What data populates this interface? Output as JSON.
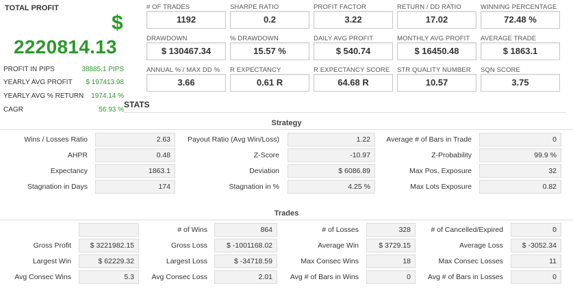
{
  "total_profit": {
    "title": "TOTAL PROFIT",
    "currency_symbol": "$",
    "value": "2220814.13",
    "rows": [
      {
        "label": "PROFIT IN PIPS",
        "value": "38885.1 PIPS"
      },
      {
        "label": "YEARLY AVG PROFIT",
        "value": "$ 197413.98"
      },
      {
        "label": "YEARLY AVG % RETURN",
        "value": "1974.14 %"
      },
      {
        "label": "CAGR",
        "value": "56.93 %"
      }
    ]
  },
  "metrics": [
    {
      "label": "# OF TRADES",
      "value": "1192"
    },
    {
      "label": "SHARPE RATIO",
      "value": "0.2"
    },
    {
      "label": "PROFIT FACTOR",
      "value": "3.22"
    },
    {
      "label": "RETURN / DD RATIO",
      "value": "17.02"
    },
    {
      "label": "WINNING PERCENTAGE",
      "value": "72.48 %"
    },
    {
      "label": "DRAWDOWN",
      "value": "$ 130467.34"
    },
    {
      "label": "% DRAWDOWN",
      "value": "15.57 %"
    },
    {
      "label": "DAILY AVG PROFIT",
      "value": "$ 540.74"
    },
    {
      "label": "MONTHLY AVG PROFIT",
      "value": "$ 16450.48"
    },
    {
      "label": "AVERAGE TRADE",
      "value": "$ 1863.1"
    },
    {
      "label": "ANNUAL % / MAX DD %",
      "value": "3.66"
    },
    {
      "label": "R EXPECTANCY",
      "value": "0.61 R"
    },
    {
      "label": "R EXPECTANCY SCORE",
      "value": "64.68 R"
    },
    {
      "label": "STR QUALITY NUMBER",
      "value": "10.57"
    },
    {
      "label": "SQN SCORE",
      "value": "3.75"
    }
  ],
  "stats_title": "STATS",
  "strategy": {
    "title": "Strategy",
    "rows": [
      [
        {
          "label": "Wins / Losses Ratio",
          "value": "2.63"
        },
        {
          "label": "Payout Ratio (Avg Win/Loss)",
          "value": "1.22"
        },
        {
          "label": "Average # of Bars in Trade",
          "value": "0"
        }
      ],
      [
        {
          "label": "AHPR",
          "value": "0.48"
        },
        {
          "label": "Z-Score",
          "value": "-10.97"
        },
        {
          "label": "Z-Probability",
          "value": "99.9 %"
        }
      ],
      [
        {
          "label": "Expectancy",
          "value": "1863.1"
        },
        {
          "label": "Deviation",
          "value": "$ 6086.89"
        },
        {
          "label": "Max Pos. Exposure",
          "value": "32"
        }
      ],
      [
        {
          "label": "Stagnation in Days",
          "value": "174"
        },
        {
          "label": "Stagnation in %",
          "value": "4.25 %"
        },
        {
          "label": "Max Lots Exposure",
          "value": "0.82"
        }
      ]
    ]
  },
  "trades": {
    "title": "Trades",
    "rows": [
      [
        {
          "label": "",
          "value": ""
        },
        {
          "label": "# of Wins",
          "value": "864"
        },
        {
          "label": "# of Losses",
          "value": "328"
        },
        {
          "label": "# of Cancelled/Expired",
          "value": "0"
        }
      ],
      [
        {
          "label": "Gross Profit",
          "value": "$ 3221982.15"
        },
        {
          "label": "Gross Loss",
          "value": "$ -1001168.02"
        },
        {
          "label": "Average Win",
          "value": "$ 3729.15"
        },
        {
          "label": "Average Loss",
          "value": "$ -3052.34"
        }
      ],
      [
        {
          "label": "Largest Win",
          "value": "$ 62229.32"
        },
        {
          "label": "Largest Loss",
          "value": "$ -34718.59"
        },
        {
          "label": "Max Consec Wins",
          "value": "18"
        },
        {
          "label": "Max Consec Losses",
          "value": "11"
        }
      ],
      [
        {
          "label": "Avg Consec Wins",
          "value": "5.3"
        },
        {
          "label": "Avg Consec Loss",
          "value": "2.01"
        },
        {
          "label": "Avg # of Bars in Wins",
          "value": "0"
        },
        {
          "label": "Avg # of Bars in Losses",
          "value": "0"
        }
      ]
    ]
  }
}
